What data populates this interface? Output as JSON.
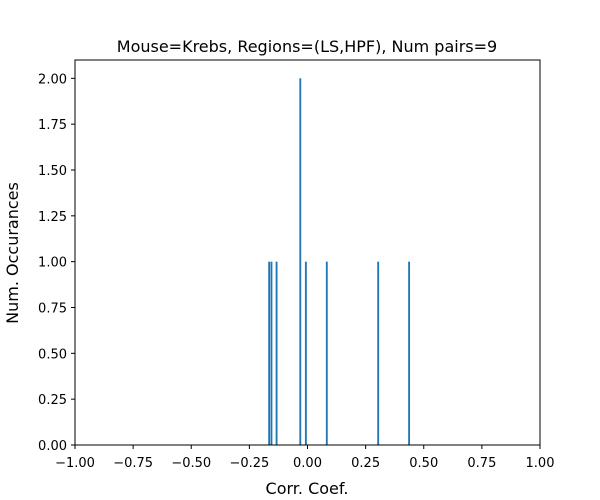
{
  "chart_data": {
    "type": "bar",
    "title": "Mouse=Krebs, Regions=(LS,HPF), Num pairs=9",
    "xlabel": "Corr. Coef.",
    "ylabel": "Num. Occurances",
    "xlim": [
      -1.0,
      1.0
    ],
    "ylim": [
      0.0,
      2.1
    ],
    "x_ticks": [
      -1.0,
      -0.75,
      -0.5,
      -0.25,
      0.0,
      0.25,
      0.5,
      0.75,
      1.0
    ],
    "x_tick_labels": [
      "−1.00",
      "−0.75",
      "−0.50",
      "−0.25",
      "0.00",
      "0.25",
      "0.50",
      "0.75",
      "1.00"
    ],
    "y_ticks": [
      0.0,
      0.25,
      0.5,
      0.75,
      1.0,
      1.25,
      1.5,
      1.75,
      2.0
    ],
    "y_tick_labels": [
      "0.00",
      "0.25",
      "0.50",
      "0.75",
      "1.00",
      "1.25",
      "1.50",
      "1.75",
      "2.00"
    ],
    "bar_width": 0.008,
    "grid": false,
    "bar_color": "#1f77b4",
    "bars": [
      {
        "x": -0.165,
        "count": 1
      },
      {
        "x": -0.155,
        "count": 1
      },
      {
        "x": -0.133,
        "count": 1
      },
      {
        "x": -0.031,
        "count": 2
      },
      {
        "x": -0.007,
        "count": 1
      },
      {
        "x": 0.083,
        "count": 1
      },
      {
        "x": 0.304,
        "count": 1
      },
      {
        "x": 0.437,
        "count": 1
      }
    ]
  }
}
